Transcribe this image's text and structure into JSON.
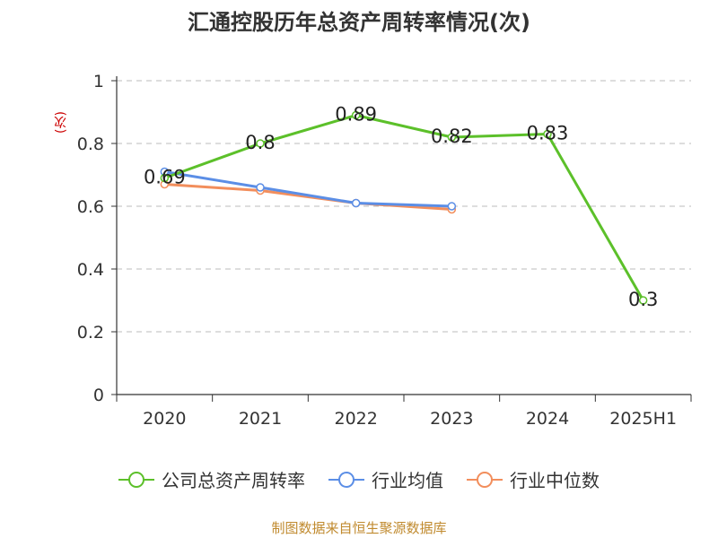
{
  "chart_data": {
    "type": "line",
    "title": "汇通控股历年总资产周转率情况(次)",
    "ylabel": "(次)",
    "xlabel": "",
    "ylim": [
      0,
      1
    ],
    "yticks": [
      "0",
      "0.2",
      "0.4",
      "0.6",
      "0.8",
      "1"
    ],
    "categories": [
      "2020",
      "2021",
      "2022",
      "2023",
      "2024",
      "2025H1"
    ],
    "grid": true,
    "legend_position": "bottom",
    "series": [
      {
        "name": "公司总资产周转率",
        "color": "#5cc02a",
        "values": [
          0.69,
          0.8,
          0.89,
          0.82,
          0.83,
          0.3
        ],
        "labels": true
      },
      {
        "name": "行业均值",
        "color": "#5b8ee6",
        "values": [
          0.71,
          0.66,
          0.61,
          0.6,
          null,
          null
        ],
        "labels": false
      },
      {
        "name": "行业中位数",
        "color": "#f28e5c",
        "values": [
          0.67,
          0.65,
          0.61,
          0.59,
          null,
          null
        ],
        "labels": false
      }
    ],
    "value_labels": [
      "0.69",
      "0.8",
      "0.89",
      "0.82",
      "0.83",
      "0.3"
    ]
  },
  "source": "制图数据来自恒生聚源数据库"
}
